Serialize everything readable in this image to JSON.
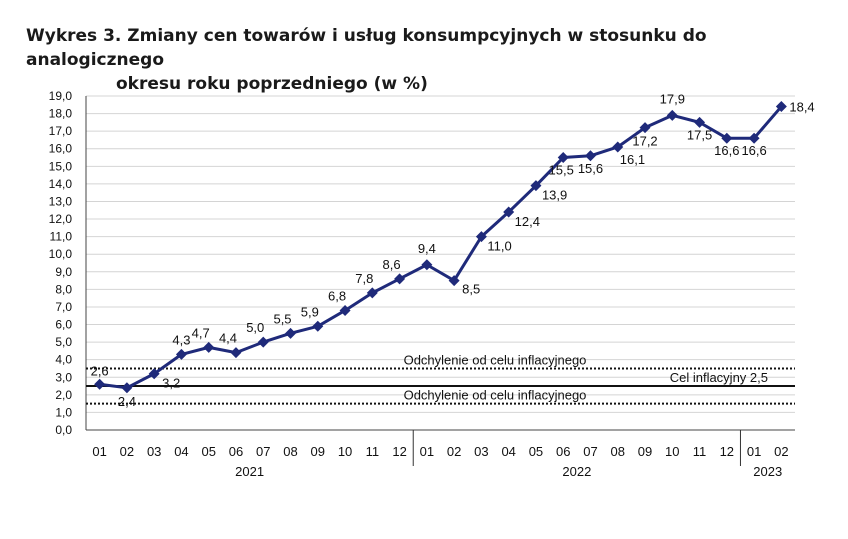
{
  "title_line1": "Wykres 3. Zmiany cen towarów i usług konsumpcyjnych w stosunku do analogicznego",
  "title_line2": "okresu roku poprzedniego (w %)",
  "chart_data": {
    "type": "line",
    "title": "Wykres 3. Zmiany cen towarów i usług konsumpcyjnych w stosunku do analogicznego okresu roku poprzedniego (w %)",
    "categories": [
      "01",
      "02",
      "03",
      "04",
      "05",
      "06",
      "07",
      "08",
      "09",
      "10",
      "11",
      "12",
      "01",
      "02",
      "03",
      "04",
      "05",
      "06",
      "07",
      "08",
      "09",
      "10",
      "11",
      "12",
      "01",
      "02"
    ],
    "years": [
      {
        "label": "2021",
        "start": 0,
        "end": 11
      },
      {
        "label": "2022",
        "start": 12,
        "end": 23
      },
      {
        "label": "2023",
        "start": 24,
        "end": 25
      }
    ],
    "series": [
      {
        "color": "#1f2a7a",
        "values": [
          2.6,
          2.4,
          3.2,
          4.3,
          4.7,
          4.4,
          5.0,
          5.5,
          5.9,
          6.8,
          7.8,
          8.6,
          9.4,
          8.5,
          11.0,
          12.4,
          13.9,
          15.5,
          15.6,
          16.1,
          17.2,
          17.9,
          17.5,
          16.6,
          16.6,
          18.4
        ],
        "labels": [
          "2,6",
          "2,4",
          "3,2",
          "4,3",
          "4,7",
          "4,4",
          "5,0",
          "5,5",
          "5,9",
          "6,8",
          "7,8",
          "8,6",
          "9,4",
          "8,5",
          "11,0",
          "12,4",
          "13,9",
          "15,5",
          "15,6",
          "16,1",
          "17,2",
          "17,9",
          "17,5",
          "16,6",
          "16,6",
          "18,4"
        ]
      }
    ],
    "ylim": [
      0,
      19
    ],
    "yticks": [
      0,
      1,
      2,
      3,
      4,
      5,
      6,
      7,
      8,
      9,
      10,
      11,
      12,
      13,
      14,
      15,
      16,
      17,
      18,
      19
    ],
    "ytick_labels": [
      "0,0",
      "1,0",
      "2,0",
      "3,0",
      "4,0",
      "5,0",
      "6,0",
      "7,0",
      "8,0",
      "9,0",
      "10,0",
      "11,0",
      "12,0",
      "13,0",
      "14,0",
      "15,0",
      "16,0",
      "17,0",
      "18,0",
      "19,0"
    ],
    "reference_lines": [
      {
        "value": 3.5,
        "style": "dotted",
        "label": "Odchylenie od celu inflacyjnego"
      },
      {
        "value": 2.5,
        "style": "solid",
        "label": "Cel inflacyjny 2,5"
      },
      {
        "value": 1.5,
        "style": "dotted",
        "label": "Odchylenie od celu inflacyjnego"
      }
    ],
    "grid": true,
    "legend": "none"
  }
}
